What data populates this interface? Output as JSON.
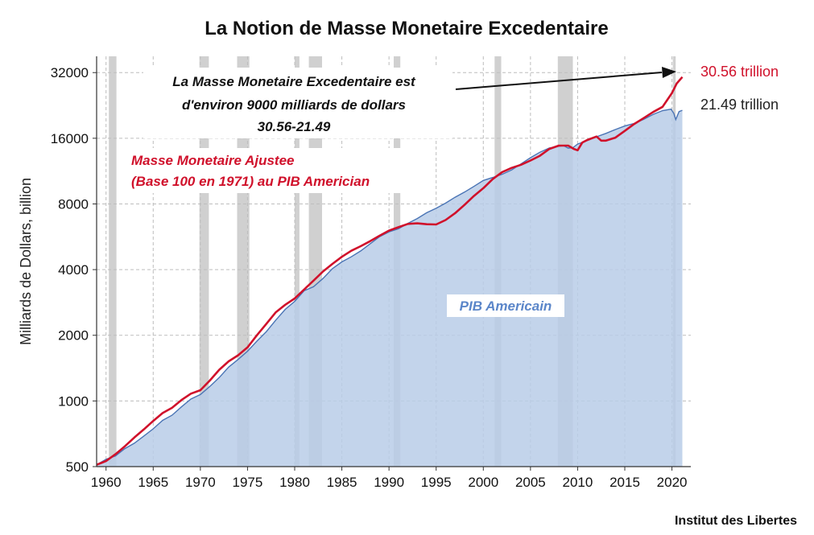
{
  "chart_data": {
    "type": "area",
    "title": "La Notion de Masse Monetaire Excedentaire",
    "xlabel": "",
    "ylabel": "Milliards de Dollars, billion",
    "y_scale": "log2",
    "xlim": [
      1959,
      2022
    ],
    "ylim": [
      500,
      38000
    ],
    "x_ticks": [
      1960,
      1965,
      1970,
      1975,
      1980,
      1985,
      1990,
      1995,
      2000,
      2005,
      2010,
      2015,
      2020
    ],
    "y_ticks": [
      500,
      1000,
      2000,
      4000,
      8000,
      16000,
      32000
    ],
    "grid": true,
    "recessions": [
      [
        1960.3,
        1961.1
      ],
      [
        1969.9,
        1970.9
      ],
      [
        1973.9,
        1975.2
      ],
      [
        1980.0,
        1980.5
      ],
      [
        1981.5,
        1982.9
      ],
      [
        1990.5,
        1991.2
      ],
      [
        2001.2,
        2001.9
      ],
      [
        2007.9,
        2009.5
      ],
      [
        2020.1,
        2020.4
      ]
    ],
    "series": [
      {
        "name": "PIB Americain",
        "kind": "area",
        "color": "#4a74b5",
        "fill": "#b8cce8",
        "x": [
          1959,
          1960,
          1961,
          1962,
          1963,
          1964,
          1965,
          1966,
          1967,
          1968,
          1969,
          1970,
          1971,
          1972,
          1973,
          1974,
          1975,
          1976,
          1977,
          1978,
          1979,
          1980,
          1981,
          1982,
          1983,
          1984,
          1985,
          1986,
          1987,
          1988,
          1989,
          1990,
          1991,
          1992,
          1993,
          1994,
          1995,
          1996,
          1997,
          1998,
          1999,
          2000,
          2001,
          2002,
          2003,
          2004,
          2005,
          2006,
          2007,
          2008,
          2008.5,
          2009,
          2009.5,
          2010,
          2011,
          2012,
          2013,
          2014,
          2015,
          2016,
          2017,
          2018,
          2019,
          2019.9,
          2020.2,
          2020.4,
          2020.75,
          2021.1
        ],
        "y": [
          510,
          540,
          560,
          605,
          640,
          690,
          745,
          815,
          860,
          940,
          1020,
          1070,
          1165,
          1280,
          1430,
          1550,
          1690,
          1880,
          2080,
          2350,
          2630,
          2860,
          3200,
          3340,
          3640,
          4040,
          4340,
          4580,
          4870,
          5250,
          5660,
          5960,
          6160,
          6520,
          6860,
          7290,
          7640,
          8070,
          8580,
          9060,
          9630,
          10250,
          10580,
          10940,
          11460,
          12210,
          13040,
          13810,
          14450,
          14710,
          14800,
          14420,
          14500,
          15050,
          15600,
          16250,
          16840,
          17550,
          18220,
          18710,
          19520,
          20580,
          21430,
          21750,
          20800,
          19500,
          21200,
          21490
        ]
      },
      {
        "name": "Masse Monetaire Ajustee (Base 100 en 1971) au PIB Americian",
        "kind": "line",
        "color": "#d0112b",
        "x": [
          1959,
          1960,
          1961,
          1962,
          1963,
          1964,
          1965,
          1966,
          1967,
          1968,
          1969,
          1970,
          1971,
          1972,
          1973,
          1974,
          1975,
          1976,
          1977,
          1978,
          1979,
          1980,
          1981,
          1982,
          1983,
          1984,
          1985,
          1986,
          1987,
          1988,
          1989,
          1990,
          1991,
          1992,
          1993,
          1994,
          1995,
          1996,
          1997,
          1998,
          1999,
          2000,
          2001,
          2002,
          2003,
          2004,
          2005,
          2006,
          2007,
          2008,
          2009,
          2009.6,
          2010,
          2010.5,
          2011,
          2012,
          2012.5,
          2013,
          2014,
          2015,
          2016,
          2017,
          2018,
          2019,
          2020,
          2020.5,
          2021.1
        ],
        "y": [
          510,
          530,
          570,
          620,
          680,
          740,
          810,
          880,
          930,
          1010,
          1080,
          1120,
          1240,
          1390,
          1520,
          1620,
          1760,
          2000,
          2260,
          2550,
          2760,
          2950,
          3240,
          3560,
          3920,
          4250,
          4580,
          4880,
          5120,
          5400,
          5720,
          6040,
          6260,
          6480,
          6520,
          6460,
          6440,
          6750,
          7250,
          7920,
          8700,
          9450,
          10400,
          11200,
          11700,
          12100,
          12650,
          13300,
          14300,
          14800,
          14800,
          14300,
          14100,
          15300,
          15700,
          16300,
          15600,
          15600,
          16100,
          17300,
          18600,
          19800,
          21100,
          22300,
          25800,
          28500,
          30560
        ]
      }
    ],
    "end_labels": [
      {
        "text": "30.56 trillion",
        "color": "#d0112b"
      },
      {
        "text": "21.49 trillion",
        "color": "#222222"
      }
    ],
    "annotations": {
      "excess": [
        "La Masse Monetaire Excedentaire est",
        "d'environ 9000 milliards de dollars",
        "30.56-21.49"
      ],
      "masse": [
        "Masse Monetaire Ajustee",
        "(Base 100 en 1971) au PIB Americian"
      ],
      "pib": "PIB Americain"
    },
    "source": "Institut des Libertes",
    "colors": {
      "recession": "#c8c8c8",
      "area_fill": "#b8cce8",
      "area_line": "#4a74b5",
      "money_line": "#d0112b",
      "excess_text": "#111111",
      "pib_text": "#5b86c9"
    }
  }
}
